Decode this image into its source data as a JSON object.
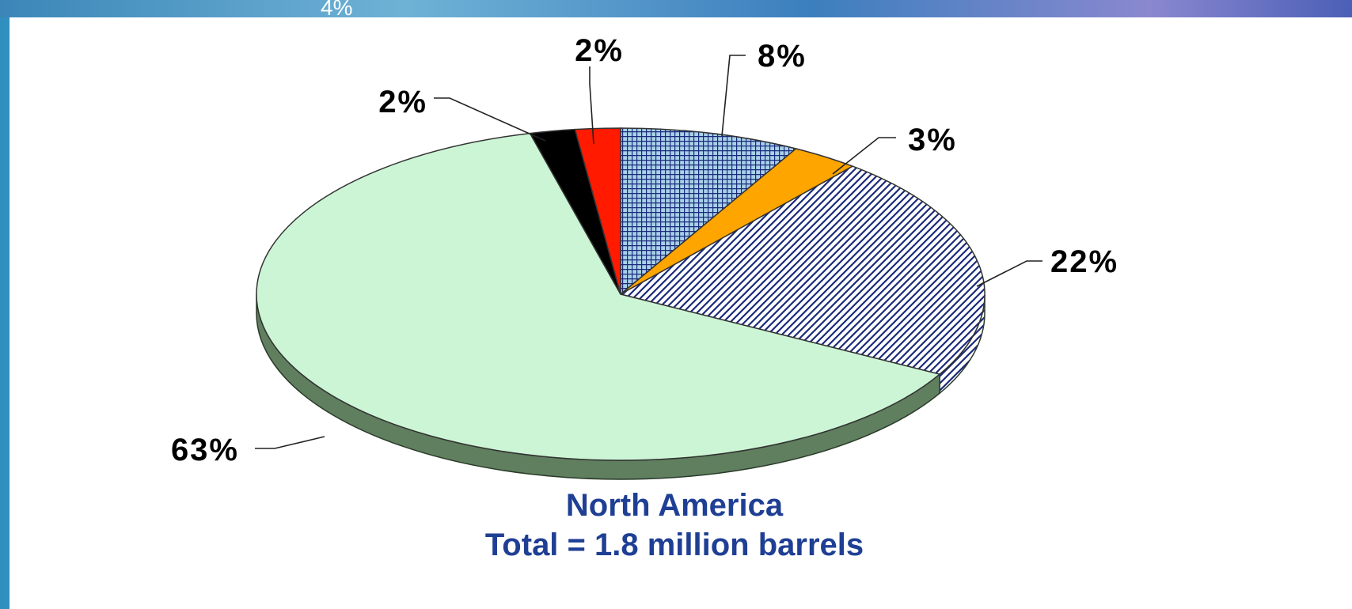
{
  "banner": {
    "text": "4%"
  },
  "chart_data": {
    "type": "pie",
    "title": "North America",
    "subtitle": "Total = 1.8 million barrels",
    "slices": [
      {
        "label": "8%",
        "value": 8,
        "color": "#a8d0e8",
        "pattern": "grid"
      },
      {
        "label": "3%",
        "value": 3,
        "color": "#ffa500",
        "pattern": "solid"
      },
      {
        "label": "22%",
        "value": 22,
        "color": "#1a2a7a",
        "pattern": "diagonal"
      },
      {
        "label": "63%",
        "value": 63,
        "color": "#ccf5d5",
        "pattern": "solid"
      },
      {
        "label": "2%",
        "value": 2,
        "color": "#000000",
        "pattern": "solid"
      },
      {
        "label": "2%",
        "value": 2,
        "color": "#ff1a00",
        "pattern": "solid"
      }
    ],
    "side_color": "#5f7f5f",
    "legend": "none"
  }
}
